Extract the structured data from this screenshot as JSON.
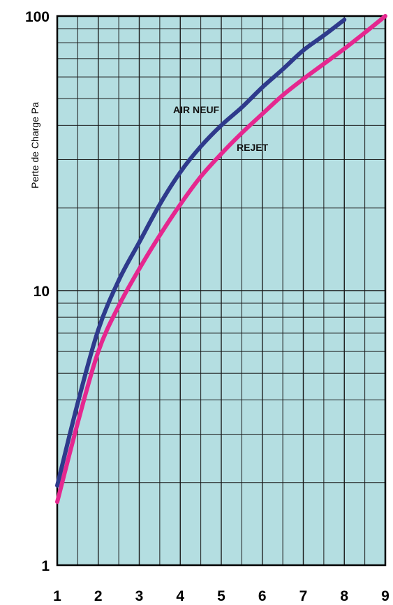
{
  "chart_data": {
    "type": "line",
    "ylabel": "Perte de Charge Pa",
    "xlabel": "",
    "x_scale": "linear",
    "y_scale": "log",
    "xlim": [
      1,
      9
    ],
    "ylim": [
      1,
      100
    ],
    "x_ticks": [
      "1",
      "2",
      "3",
      "4",
      "5",
      "6",
      "7",
      "8",
      "9"
    ],
    "y_ticks": [
      "1",
      "10",
      "100"
    ],
    "grid": true,
    "plot_background": "#b4dee1",
    "series": [
      {
        "name": "AIR NEUF",
        "color": "#2e3a8c",
        "x": [
          1,
          1.5,
          2,
          2.5,
          3,
          3.5,
          4,
          4.5,
          5,
          5.5,
          6,
          6.5,
          7,
          7.5,
          8
        ],
        "y": [
          1.95,
          3.9,
          7.2,
          10.9,
          15,
          20.6,
          27,
          33.5,
          40,
          46.5,
          55,
          64,
          75,
          85,
          97
        ]
      },
      {
        "name": "REJET",
        "color": "#e5278f",
        "x": [
          1,
          1.5,
          2,
          2.5,
          3,
          3.5,
          4,
          4.5,
          5,
          5.5,
          6,
          6.5,
          7,
          7.5,
          8,
          8.5,
          9
        ],
        "y": [
          1.7,
          3.3,
          6,
          8.8,
          12,
          15.9,
          20.6,
          26,
          31.5,
          37.5,
          44,
          51.5,
          59,
          67,
          76,
          87,
          100
        ]
      }
    ]
  }
}
